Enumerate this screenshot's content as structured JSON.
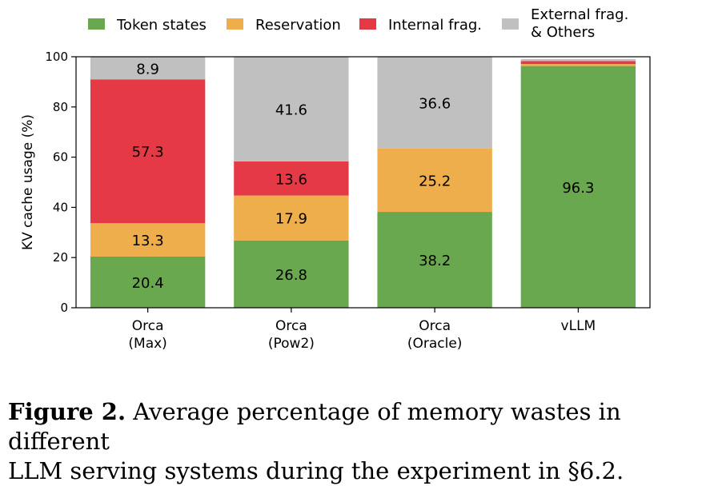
{
  "chart_data": {
    "type": "bar",
    "stacked": true,
    "categories": [
      [
        "Orca",
        "(Max)"
      ],
      [
        "Orca",
        "(Pow2)"
      ],
      [
        "Orca",
        "(Oracle)"
      ],
      [
        "vLLM"
      ]
    ],
    "series": [
      {
        "name": "Token states",
        "color": "#6aa84f",
        "values": [
          20.4,
          26.8,
          38.2,
          96.3
        ],
        "labels": [
          "20.4",
          "26.8",
          "38.2",
          "96.3"
        ]
      },
      {
        "name": "Reservation",
        "color": "#eeae4b",
        "values": [
          13.3,
          17.9,
          25.2,
          0.8
        ],
        "labels": [
          "13.3",
          "17.9",
          "25.2",
          ""
        ]
      },
      {
        "name": "Internal frag.",
        "color": "#e63946",
        "values": [
          57.3,
          13.6,
          0,
          1.2
        ],
        "labels": [
          "57.3",
          "13.6",
          "",
          ""
        ]
      },
      {
        "name": [
          "External frag.",
          "& Others"
        ],
        "color": "#c0c0c0",
        "values": [
          8.9,
          41.6,
          36.6,
          0.8
        ],
        "labels": [
          "8.9",
          "41.6",
          "36.6",
          ""
        ]
      }
    ],
    "ylabel": "KV cache usage (%)",
    "ylim": [
      0,
      100
    ],
    "yticks": [
      "0",
      "20",
      "40",
      "60",
      "80",
      "100"
    ],
    "legend": "top",
    "grid": false
  },
  "caption": {
    "figure_label": "Figure 2.",
    "line1": " Average percentage of memory wastes in different",
    "line2": "LLM serving systems during the experiment in §6.2."
  }
}
